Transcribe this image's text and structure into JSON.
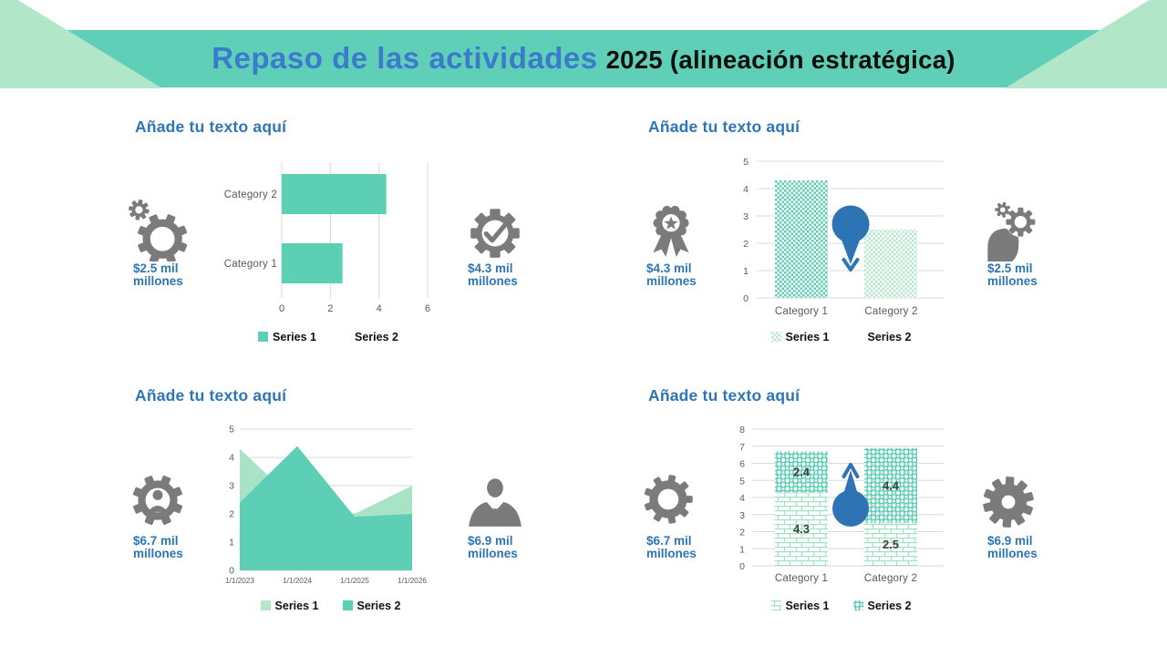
{
  "header": {
    "title_main": "Repaso de las actividades",
    "title_suffix": "2025 (alineación estratégica)"
  },
  "colors": {
    "band": "#5fd0b7",
    "corner": "#b2e6c8",
    "title_blue": "#3b7bce",
    "accent_blue": "#2e75b6",
    "teal": "#5dcfb5",
    "mint": "#a9e3c5",
    "icon_gray": "#7b7b7b",
    "grid": "#d9d9d9",
    "tick": "#595959",
    "data_label": "#3f3f3f",
    "balloon": "#2e74b5"
  },
  "panels": [
    {
      "heading": "Añade tu texto aquí",
      "left_stat": {
        "icon": "double-gear-icon",
        "label": "$2.5 mil millones"
      },
      "right_stat": {
        "icon": "gear-check-icon",
        "label": "$4.3 mil millones"
      },
      "legend": [
        {
          "label": "Series 1",
          "swatch": "teal"
        },
        {
          "label": "Series 2",
          "swatch": "none"
        }
      ]
    },
    {
      "heading": "Añade tu texto aquí",
      "left_stat": {
        "icon": "award-icon",
        "label": "$4.3 mil millones"
      },
      "right_stat": {
        "icon": "head-gear-icon",
        "label": "$2.5 mil millones"
      },
      "legend": [
        {
          "label": "Series 1",
          "swatch": "checker-mint"
        },
        {
          "label": "Series 2",
          "swatch": "none"
        }
      ]
    },
    {
      "heading": "Añade tu texto aquí",
      "left_stat": {
        "icon": "person-gear-icon",
        "label": "$6.7 mil millones"
      },
      "right_stat": {
        "icon": "businessman-icon",
        "label": "$6.9 mil millones"
      },
      "legend": [
        {
          "label": "Series 1",
          "swatch": "mint"
        },
        {
          "label": "Series 2",
          "swatch": "teal"
        }
      ]
    },
    {
      "heading": "Añade tu texto aquí",
      "left_stat": {
        "icon": "ring-gear-icon",
        "label": "$6.7 mil millones"
      },
      "right_stat": {
        "icon": "cog-icon",
        "label": "$6.9 mil millones"
      },
      "legend": [
        {
          "label": "Series 1",
          "swatch": "brick-mint"
        },
        {
          "label": "Series 2",
          "swatch": "rings-teal"
        }
      ]
    }
  ],
  "chart_data": [
    {
      "type": "bar",
      "orientation": "horizontal",
      "categories": [
        "Category 1",
        "Category 2"
      ],
      "series": [
        {
          "name": "Series 1",
          "color": "#5dcfb5",
          "values": [
            2.5,
            4.3
          ]
        },
        {
          "name": "Series 2",
          "color": "#ffffff",
          "values": [
            null,
            null
          ]
        }
      ],
      "xlim": [
        0,
        6
      ],
      "xticks": [
        0,
        2,
        4,
        6
      ],
      "grid": true,
      "legend_position": "bottom"
    },
    {
      "type": "bar",
      "orientation": "vertical",
      "categories": [
        "Category 1",
        "Category 2"
      ],
      "series": [
        {
          "name": "Series 1",
          "pattern": "checker-teal",
          "values": [
            4.3,
            null
          ]
        },
        {
          "name": "Series 2",
          "pattern": "checker-mint",
          "values": [
            null,
            2.5
          ]
        }
      ],
      "ylim": [
        0,
        5
      ],
      "ytick_step": 1,
      "grid": true,
      "legend_position": "bottom",
      "annotation": {
        "shape": "pin-balloon",
        "arrow": "down",
        "color": "#2e74b5"
      }
    },
    {
      "type": "area",
      "x_labels": [
        "1/1/2023",
        "1/1/2024",
        "1/1/2025",
        "1/1/2026"
      ],
      "series": [
        {
          "name": "Series 1",
          "color": "#a9e3c5",
          "values": [
            4.3,
            2.4,
            2.0,
            3.0
          ]
        },
        {
          "name": "Series 2",
          "color": "#5dcfb5",
          "values": [
            2.4,
            4.4,
            1.9,
            2.0
          ]
        }
      ],
      "ylim": [
        0,
        5
      ],
      "ytick_step": 1,
      "grid": true,
      "legend_position": "bottom"
    },
    {
      "type": "bar",
      "orientation": "vertical",
      "stacked": true,
      "categories": [
        "Category 1",
        "Category 2"
      ],
      "series": [
        {
          "name": "Series 1",
          "pattern": "brick-mint",
          "values": [
            4.3,
            2.5
          ]
        },
        {
          "name": "Series 2",
          "pattern": "rings-teal",
          "values": [
            2.4,
            4.4
          ]
        }
      ],
      "ylim": [
        0,
        8
      ],
      "ytick_step": 1,
      "grid": true,
      "data_labels": true,
      "legend_position": "bottom",
      "annotation": {
        "shape": "pin-balloon",
        "arrow": "up",
        "color": "#2e74b5"
      }
    }
  ]
}
